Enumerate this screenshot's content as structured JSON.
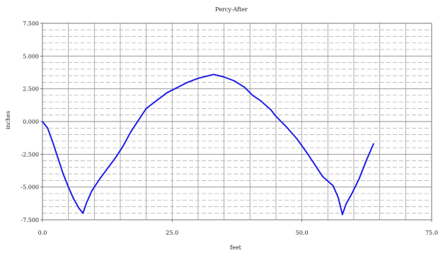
{
  "chart_data": {
    "type": "line",
    "title": "Percy-After",
    "xlabel": "feet",
    "ylabel": "inches",
    "xlim": [
      0,
      75
    ],
    "ylim": [
      -7.5,
      7.5
    ],
    "x_ticks": [
      "0.0",
      "25.0",
      "50.0",
      "75.0"
    ],
    "y_ticks": [
      "7.500",
      "5.000",
      "2.500",
      "0.000",
      "-2.500",
      "-5.000",
      "-7.500"
    ],
    "grid": true,
    "line_color": "#1f1fe6",
    "points": [
      [
        0,
        0.0
      ],
      [
        1,
        -0.5
      ],
      [
        2,
        -1.6
      ],
      [
        3,
        -2.8
      ],
      [
        4,
        -4.0
      ],
      [
        5,
        -5.0
      ],
      [
        6,
        -5.9
      ],
      [
        7,
        -6.6
      ],
      [
        7.8,
        -7.0
      ],
      [
        8.5,
        -6.2
      ],
      [
        9.5,
        -5.3
      ],
      [
        11,
        -4.4
      ],
      [
        12.5,
        -3.6
      ],
      [
        14,
        -2.8
      ],
      [
        15.5,
        -1.9
      ],
      [
        17,
        -0.8
      ],
      [
        18.5,
        0.1
      ],
      [
        20,
        1.0
      ],
      [
        22,
        1.6
      ],
      [
        24,
        2.2
      ],
      [
        26,
        2.6
      ],
      [
        28,
        3.0
      ],
      [
        30,
        3.3
      ],
      [
        32,
        3.5
      ],
      [
        33,
        3.6
      ],
      [
        34,
        3.5
      ],
      [
        35,
        3.4
      ],
      [
        37,
        3.1
      ],
      [
        39,
        2.6
      ],
      [
        40.5,
        2.0
      ],
      [
        42,
        1.6
      ],
      [
        44,
        0.9
      ],
      [
        45,
        0.4
      ],
      [
        47,
        -0.4
      ],
      [
        49,
        -1.3
      ],
      [
        51,
        -2.4
      ],
      [
        52.5,
        -3.3
      ],
      [
        54,
        -4.2
      ],
      [
        56,
        -4.9
      ],
      [
        57,
        -5.8
      ],
      [
        57.8,
        -7.1
      ],
      [
        58.5,
        -6.3
      ],
      [
        59.5,
        -5.6
      ],
      [
        61,
        -4.4
      ],
      [
        62.5,
        -2.9
      ],
      [
        63.8,
        -1.7
      ]
    ]
  }
}
